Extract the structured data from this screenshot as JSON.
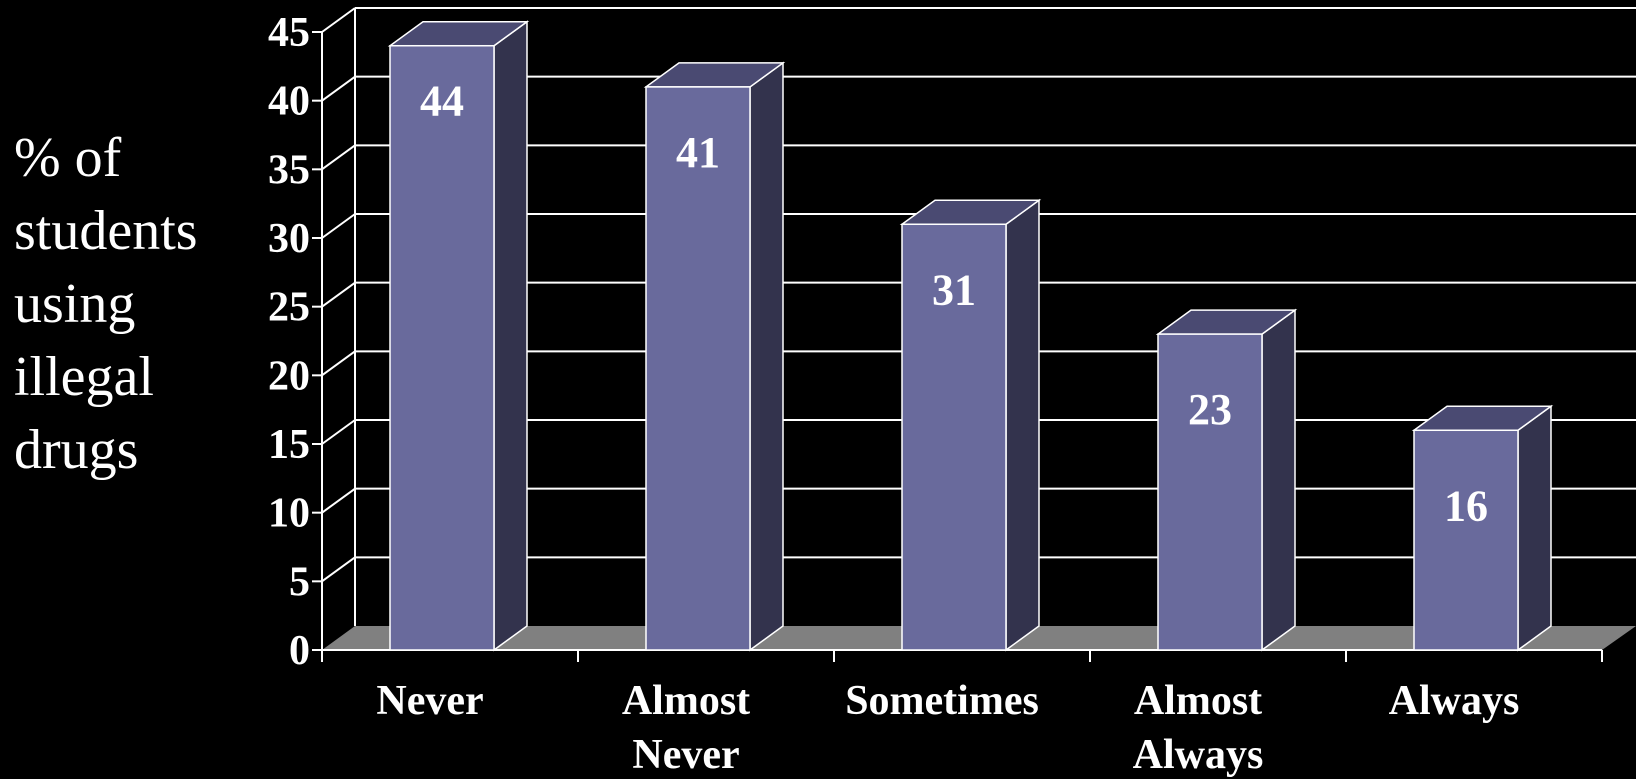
{
  "chart_data": {
    "type": "bar",
    "ylabel_lines": [
      "% of",
      "students",
      "using",
      "illegal",
      "drugs"
    ],
    "categories": [
      [
        "Never"
      ],
      [
        "Almost",
        "Never"
      ],
      [
        "Sometimes"
      ],
      [
        "Almost",
        "Always"
      ],
      [
        "Always"
      ]
    ],
    "values": [
      44,
      41,
      31,
      23,
      16
    ],
    "yticks": [
      "0",
      "5",
      "10",
      "15",
      "20",
      "25",
      "30",
      "35",
      "40",
      "45"
    ],
    "ylim": [
      0,
      45
    ],
    "grid": true,
    "colors": {
      "bar_front": "#696a9c",
      "bar_top": "#4a4a72",
      "bar_side": "#33334d",
      "floor": "#808080",
      "grid": "#ffffff",
      "background": "#000000"
    }
  }
}
